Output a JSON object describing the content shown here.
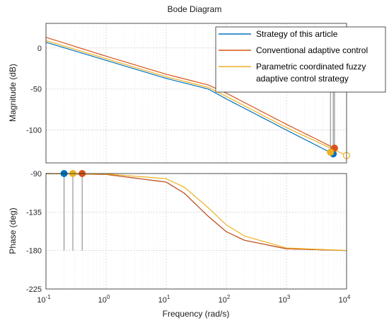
{
  "chart_data": {
    "type": "line",
    "title": "Bode Diagram",
    "xlabel": "Frequency (rad/s)",
    "xscale": "log",
    "xlim": [
      0.1,
      10000
    ],
    "xticks": [
      0.1,
      1,
      10,
      100,
      1000,
      10000
    ],
    "xtick_labels": [
      {
        "base": "10",
        "exp": "-1"
      },
      {
        "base": "10",
        "exp": "0"
      },
      {
        "base": "10",
        "exp": "1"
      },
      {
        "base": "10",
        "exp": "2"
      },
      {
        "base": "10",
        "exp": "3"
      },
      {
        "base": "10",
        "exp": "4"
      }
    ],
    "grid": true,
    "legend": {
      "placement": "top-right",
      "entries": [
        {
          "lines": [
            "Strategy of this article"
          ],
          "color": "#0072BD"
        },
        {
          "lines": [
            "Conventional adaptive control"
          ],
          "color": "#D95319"
        },
        {
          "lines": [
            "Parametric coordinated fuzzy",
            "adaptive control strategy"
          ],
          "color": "#EDB120"
        }
      ]
    },
    "panels": [
      {
        "ylabel": "Magnitude (dB)",
        "ylim": [
          -140,
          30
        ],
        "yticks": [
          0,
          -50,
          -100
        ],
        "ytick_labels": [
          "0",
          "-50",
          "-100"
        ],
        "series": [
          {
            "color": "#0072BD",
            "x": [
              0.1,
              1,
              10,
              50,
              100,
              1000,
              6000
            ],
            "y": [
              7,
              -15,
              -37,
              -50,
              -62,
              -100,
              -129
            ],
            "marker": {
              "x": 6000,
              "y": -129
            }
          },
          {
            "color": "#D95319",
            "x": [
              0.1,
              1,
              10,
              50,
              100,
              1000,
              6300
            ],
            "y": [
              13,
              -10,
              -32,
              -45,
              -55,
              -93,
              -122
            ],
            "marker": {
              "x": 6300,
              "y": -122
            }
          },
          {
            "color": "#EDB120",
            "x": [
              0.1,
              1,
              10,
              50,
              100,
              1000,
              10000
            ],
            "y": [
              9,
              -13,
              -35,
              -48,
              -59,
              -97,
              -131
            ],
            "marker": {
              "x": 5400,
              "y": -127
            }
          }
        ]
      },
      {
        "ylabel": "Phase (deg)",
        "ylim": [
          -225,
          -90
        ],
        "yticks": [
          -90,
          -135,
          -180,
          -225
        ],
        "ytick_labels": [
          "-90",
          "-135",
          "-180",
          "-225"
        ],
        "series": [
          {
            "color": "#0072BD",
            "x": [
              0.1,
              1,
              10,
              20,
              50,
              100,
              200,
              1000,
              10000
            ],
            "y": [
              -90,
              -91,
              -100,
              -113,
              -140,
              -158,
              -168,
              -178,
              -180
            ],
            "marker": {
              "x": 0.2,
              "y": -90
            }
          },
          {
            "color": "#D95319",
            "x": [
              0.1,
              1,
              10,
              20,
              50,
              100,
              200,
              1000,
              10000
            ],
            "y": [
              -90,
              -91,
              -100,
              -113,
              -140,
              -158,
              -168,
              -178,
              -180
            ],
            "marker": {
              "x": 0.4,
              "y": -90
            }
          },
          {
            "color": "#EDB120",
            "x": [
              0.1,
              1,
              10,
              20,
              50,
              100,
              200,
              1000,
              10000
            ],
            "y": [
              -90,
              -90.5,
              -96,
              -106,
              -130,
              -150,
              -163,
              -177,
              -180
            ],
            "marker": {
              "x": 0.28,
              "y": -90
            }
          }
        ]
      }
    ]
  }
}
